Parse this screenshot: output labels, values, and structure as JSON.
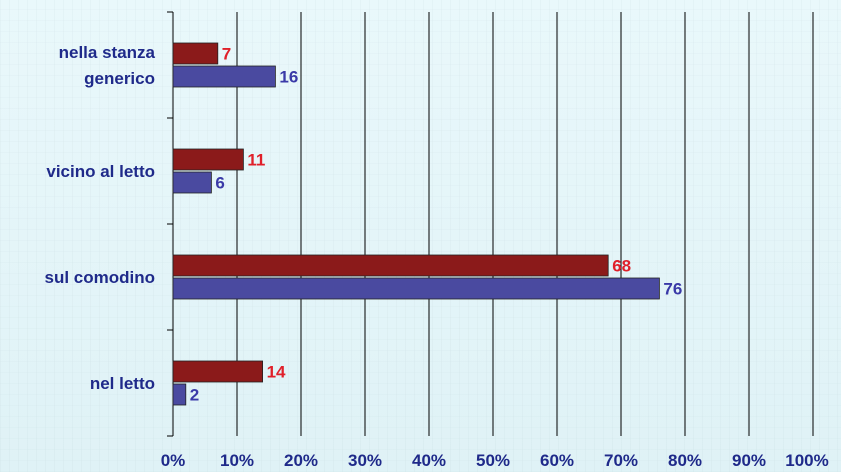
{
  "chart_data": {
    "type": "bar",
    "orientation": "horizontal",
    "categories": [
      "nella stanza generico",
      "vicino al letto",
      "sul comodino",
      "nel letto"
    ],
    "category_lines": [
      [
        "nella stanza",
        "generico"
      ],
      [
        "vicino al letto"
      ],
      [
        "sul comodino"
      ],
      [
        "nel letto"
      ]
    ],
    "series": [
      {
        "values": [
          7,
          11,
          68,
          14
        ],
        "color": "#8b1a1a",
        "label_color": "#e0202a"
      },
      {
        "values": [
          16,
          6,
          76,
          2
        ],
        "color": "#4a4aa0",
        "label_color": "#3a3aa8"
      }
    ],
    "xlim": [
      0,
      100
    ],
    "xticks": [
      "0%",
      "10%",
      "20%",
      "30%",
      "40%",
      "50%",
      "60%",
      "70%",
      "80%",
      "90%",
      "100%"
    ],
    "x_tick_values": [
      0,
      10,
      20,
      30,
      40,
      50,
      60,
      70,
      80,
      90,
      100
    ],
    "grid": true,
    "legend": "none",
    "title": "",
    "xlabel": "",
    "ylabel": ""
  },
  "colors": {
    "axis_text": "#1f2a8a",
    "grid": "#000000",
    "background": "#e4f6f9"
  }
}
